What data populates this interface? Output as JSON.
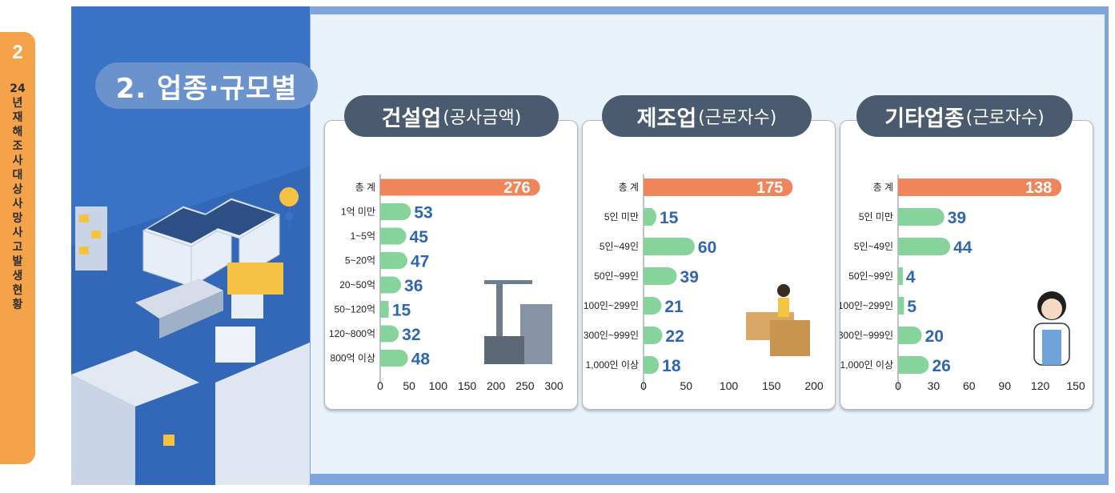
{
  "sidebar": {
    "number": "2",
    "text": "24년 재해조사 대상 사망사고 발생현황"
  },
  "section_title": "2. 업종·규모별",
  "chart_data": [
    {
      "type": "bar",
      "title_main": "건설업",
      "title_sub": "(공사금액)",
      "categories": [
        "총 계",
        "1억 미만",
        "1~5억",
        "5~20억",
        "20~50억",
        "50~120억",
        "120~800억",
        "800억 이상"
      ],
      "values": [
        276,
        53,
        45,
        47,
        36,
        15,
        32,
        48
      ],
      "xlim": [
        0,
        300
      ],
      "ticks": [
        0,
        50,
        100,
        150,
        200,
        250,
        300
      ],
      "colors": {
        "total": "#f0845a",
        "bar": "#86d49c",
        "label": "#2f66b3",
        "total_label": "#ffffff"
      }
    },
    {
      "type": "bar",
      "title_main": "제조업",
      "title_sub": "(근로자수)",
      "categories": [
        "총 계",
        "5인 미만",
        "5인~49인",
        "50인~99인",
        "100인~299인",
        "300인~999인",
        "1,000인 이상"
      ],
      "values": [
        175,
        15,
        60,
        39,
        21,
        22,
        18
      ],
      "xlim": [
        0,
        200
      ],
      "ticks": [
        0,
        50,
        100,
        150,
        200
      ],
      "colors": {
        "total": "#f0845a",
        "bar": "#86d49c",
        "label": "#2f66b3",
        "total_label": "#ffffff"
      }
    },
    {
      "type": "bar",
      "title_main": "기타업종",
      "title_sub": "(근로자수)",
      "categories": [
        "총 계",
        "5인 미만",
        "5인~49인",
        "50인~99인",
        "100인~299인",
        "300인~999인",
        "1,000인 이상"
      ],
      "values": [
        138,
        39,
        44,
        4,
        5,
        20,
        26
      ],
      "xlim": [
        0,
        150
      ],
      "ticks": [
        0,
        30,
        60,
        90,
        120,
        150
      ],
      "colors": {
        "total": "#f0845a",
        "bar": "#86d49c",
        "label": "#2f66b3",
        "total_label": "#ffffff"
      }
    }
  ]
}
